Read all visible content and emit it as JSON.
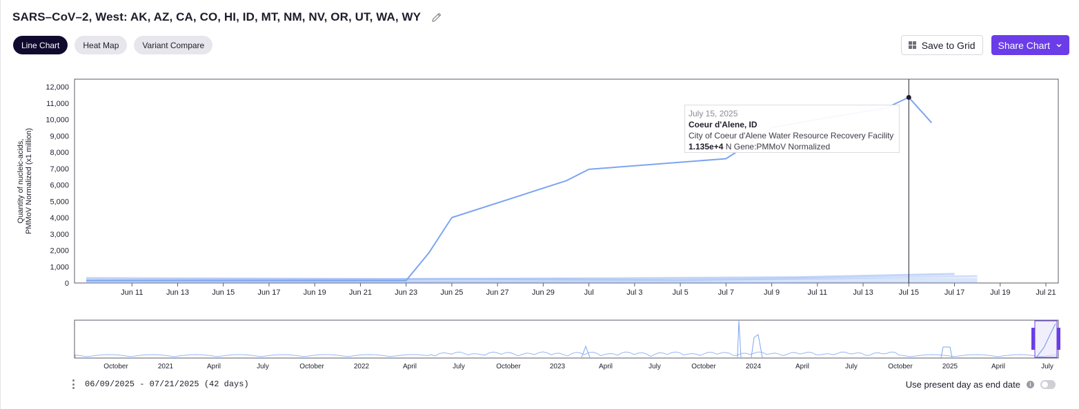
{
  "header": {
    "title": "SARS–CoV–2, West: AK, AZ, CA, CO, HI, ID, MT, NM, NV, OR, UT, WA, WY"
  },
  "tabs": [
    {
      "label": "Line Chart"
    },
    {
      "label": "Heat Map"
    },
    {
      "label": "Variant Compare"
    }
  ],
  "actions": {
    "save_label": "Save to Grid",
    "share_label": "Share Chart"
  },
  "colors": {
    "series": "#7ba4f0",
    "accent": "#6a3de8",
    "active_tab": "#100b2e"
  },
  "tooltip": {
    "date": "July 15, 2025",
    "site": "Coeur d'Alene, ID",
    "facility": "City of Coeur d'Alene Water Resource Recovery Facility",
    "value": "1.135e+4",
    "metric": "N Gene:PMMoV Normalized"
  },
  "range": {
    "text": "06/09/2025 - 07/21/2025 (42 days)"
  },
  "present_day": {
    "label": "Use present day as end date",
    "enabled": false
  },
  "chart_data": {
    "type": "line",
    "ylabel": [
      "Quantity of nucleic-acids,",
      "PMMoV Normalized (x1 million)"
    ],
    "ylim": [
      0,
      12000
    ],
    "yticks": [
      0,
      1000,
      2000,
      3000,
      4000,
      5000,
      6000,
      7000,
      8000,
      9000,
      10000,
      11000,
      12000
    ],
    "ytick_labels": [
      "0",
      "1,000",
      "2,000",
      "3,000",
      "4,000",
      "5,000",
      "6,000",
      "7,000",
      "8,000",
      "9,000",
      "10,000",
      "11,000",
      "12,000"
    ],
    "xlim": [
      "2025-06-09",
      "2025-07-21"
    ],
    "xticks": [
      {
        "date": "2025-06-11",
        "label": "Jun 11"
      },
      {
        "date": "2025-06-13",
        "label": "Jun 13"
      },
      {
        "date": "2025-06-15",
        "label": "Jun 15"
      },
      {
        "date": "2025-06-17",
        "label": "Jun 17"
      },
      {
        "date": "2025-06-19",
        "label": "Jun 19"
      },
      {
        "date": "2025-06-21",
        "label": "Jun 21"
      },
      {
        "date": "2025-06-23",
        "label": "Jun 23"
      },
      {
        "date": "2025-06-25",
        "label": "Jun 25"
      },
      {
        "date": "2025-06-27",
        "label": "Jun 27"
      },
      {
        "date": "2025-06-29",
        "label": "Jun 29"
      },
      {
        "date": "2025-07-01",
        "label": "Jul"
      },
      {
        "date": "2025-07-03",
        "label": "Jul 3"
      },
      {
        "date": "2025-07-05",
        "label": "Jul 5"
      },
      {
        "date": "2025-07-07",
        "label": "Jul 7"
      },
      {
        "date": "2025-07-09",
        "label": "Jul 9"
      },
      {
        "date": "2025-07-11",
        "label": "Jul 11"
      },
      {
        "date": "2025-07-13",
        "label": "Jul 13"
      },
      {
        "date": "2025-07-15",
        "label": "Jul 15"
      },
      {
        "date": "2025-07-17",
        "label": "Jul 17"
      },
      {
        "date": "2025-07-19",
        "label": "Jul 19"
      },
      {
        "date": "2025-07-21",
        "label": "Jul 21"
      }
    ],
    "series": [
      {
        "name": "Coeur d'Alene, ID",
        "points": [
          [
            "2025-06-09",
            150
          ],
          [
            "2025-06-23",
            150
          ],
          [
            "2025-06-24",
            1850
          ],
          [
            "2025-06-25",
            4000
          ],
          [
            "2025-06-30",
            6250
          ],
          [
            "2025-07-01",
            6950
          ],
          [
            "2025-07-07",
            7600
          ],
          [
            "2025-07-08",
            8500
          ],
          [
            "2025-07-09",
            9500
          ],
          [
            "2025-07-11",
            10000
          ],
          [
            "2025-07-14",
            10700
          ],
          [
            "2025-07-15",
            11350
          ],
          [
            "2025-07-16",
            9800
          ]
        ]
      },
      {
        "points": [
          [
            "2025-06-09",
            300
          ],
          [
            "2025-06-23",
            230
          ],
          [
            "2025-07-01",
            280
          ],
          [
            "2025-07-10",
            350
          ],
          [
            "2025-07-17",
            550
          ]
        ]
      },
      {
        "points": [
          [
            "2025-06-09",
            200
          ],
          [
            "2025-06-25",
            250
          ],
          [
            "2025-07-05",
            180
          ],
          [
            "2025-07-12",
            300
          ],
          [
            "2025-07-18",
            420
          ]
        ]
      },
      {
        "points": [
          [
            "2025-06-09",
            120
          ],
          [
            "2025-06-20",
            100
          ],
          [
            "2025-07-01",
            150
          ],
          [
            "2025-07-18",
            250
          ]
        ]
      },
      {
        "points": [
          [
            "2025-06-09",
            60
          ],
          [
            "2025-06-28",
            80
          ],
          [
            "2025-07-08",
            60
          ],
          [
            "2025-07-18",
            120
          ]
        ]
      },
      {
        "points": [
          [
            "2025-06-09",
            30
          ],
          [
            "2025-07-18",
            40
          ]
        ]
      }
    ],
    "highlight": {
      "date": "2025-07-15",
      "value": 11350
    },
    "navigator": {
      "labels": [
        "October",
        "2021",
        "April",
        "July",
        "October",
        "2022",
        "April",
        "July",
        "October",
        "2023",
        "April",
        "July",
        "October",
        "2024",
        "April",
        "July",
        "October",
        "2025",
        "April",
        "July"
      ]
    }
  }
}
